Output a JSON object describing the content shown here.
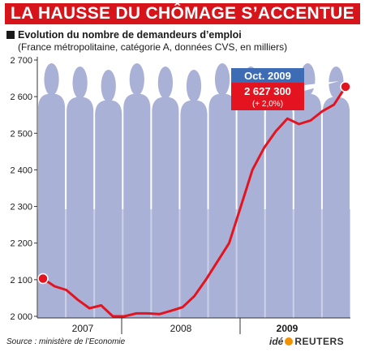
{
  "header": {
    "title": "LA HAUSSE DU CHÔMAGE S’ACCENTUE",
    "subtitle": "Evolution du nombre de demandeurs d’emploi",
    "subtitle2": "(France métropolitaine, catégorie A, données CVS, en milliers)"
  },
  "footer": {
    "source": "Source : ministère de l’Economie",
    "logo_ide": "idé",
    "logo_reuters": "REUTERS"
  },
  "colors": {
    "title_bg": "#d7141a",
    "line": "#e3141f",
    "silhouettes": "#aab1d6",
    "background_band": "#cdd1e8",
    "callout_header": "#3d6cb5",
    "callout_body": "#e3141f"
  },
  "callout": {
    "label": "Oct. 2009",
    "value": "2 627 300",
    "change": "(+ 2,0%)"
  },
  "chart_data": {
    "type": "line",
    "title": "LA HAUSSE DU CHÔMAGE S’ACCENTUE",
    "subtitle": "Evolution du nombre de demandeurs d’emploi",
    "ylabel": "",
    "xlabel": "",
    "ylim": [
      2000,
      2700
    ],
    "y_ticks": [
      "2 000",
      "2 100",
      "2 200",
      "2 300",
      "2 400",
      "2 500",
      "2 600",
      "2 700"
    ],
    "y_tick_values": [
      2000,
      2100,
      2200,
      2300,
      2400,
      2500,
      2600,
      2700
    ],
    "x_tick_labels": [
      "2007",
      "2008",
      "2009"
    ],
    "grid": false,
    "series": [
      {
        "values": [
          2103,
          2082,
          2072,
          2045,
          2022,
          2030,
          2000,
          2000,
          2008,
          2008,
          2006,
          2015,
          2025,
          2055,
          2100,
          2150,
          2200,
          2300,
          2400,
          2460,
          2505,
          2540,
          2525,
          2535,
          2560,
          2578,
          2627
        ]
      }
    ]
  }
}
